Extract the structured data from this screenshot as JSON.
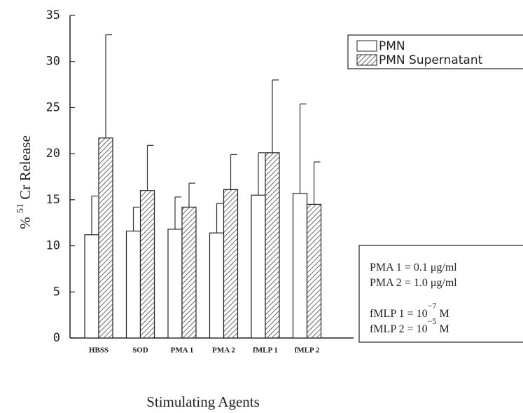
{
  "chart_data": {
    "type": "bar",
    "x_label": "Stimulating Agents",
    "y_label": {
      "pre": "%",
      "sup": "51",
      "main": "Cr  Release"
    },
    "categories": [
      "HBSS",
      "SOD",
      "PMA 1",
      "PMA 2",
      "fMLP 1",
      "fMLP 2"
    ],
    "series": [
      {
        "name": "PMN",
        "color": "#ffffff",
        "values": [
          11.2,
          11.6,
          11.8,
          11.4,
          15.5,
          15.7
        ],
        "errors": [
          4.2,
          2.6,
          3.5,
          3.2,
          4.6,
          9.7
        ]
      },
      {
        "name": "PMN Supernatant",
        "color": "#ffffff",
        "hatch": "#444444",
        "values": [
          21.7,
          16.0,
          14.2,
          16.1,
          20.1,
          14.5
        ],
        "errors": [
          11.2,
          4.9,
          2.6,
          3.8,
          7.9,
          4.6
        ]
      }
    ],
    "ylim": [
      0,
      35
    ],
    "yticks": [
      0,
      5,
      10,
      15,
      20,
      25,
      30,
      35
    ],
    "legend": "upper right",
    "annotations": [
      {
        "text": "PMA 1 = 0.1 μg/ml"
      },
      {
        "text": "PMA 2 = 1.0 μg/ml"
      },
      {
        "text": "fMLP 1 = 10",
        "sup": "−7",
        "unit": "M"
      },
      {
        "text": "fMLP 2 = 10",
        "sup": "−5",
        "unit": "M"
      }
    ]
  }
}
